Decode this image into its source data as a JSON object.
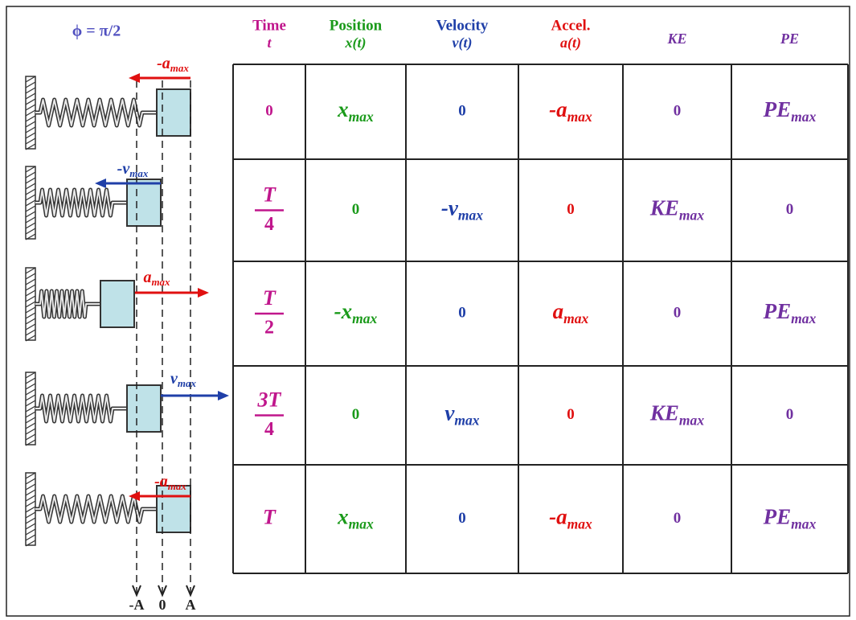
{
  "phase_label": "ϕ = π/2",
  "diagram": {
    "arrows": [
      {
        "base": "-a",
        "sub": "max"
      },
      {
        "base": "-v",
        "sub": "max"
      },
      {
        "base": "a",
        "sub": "max"
      },
      {
        "base": "v",
        "sub": "max"
      },
      {
        "base": "-a",
        "sub": "max"
      }
    ],
    "axis_labels": [
      "-A",
      "0",
      "A"
    ]
  },
  "table": {
    "header": [
      {
        "name": "Time",
        "symbol": "t"
      },
      {
        "name": "Position",
        "symbol": "x(t)"
      },
      {
        "name": "Velocity",
        "symbol": "v(t)"
      },
      {
        "name": "Accel.",
        "symbol": "a(t)"
      },
      {
        "symbol": "KE"
      },
      {
        "symbol": "PE"
      }
    ],
    "rows": [
      [
        {
          "text": "0"
        },
        {
          "base": "x",
          "sub": "max"
        },
        {
          "text": "0"
        },
        {
          "base": "-a",
          "sub": "max"
        },
        {
          "text": "0"
        },
        {
          "base": "PE",
          "sub": "max"
        }
      ],
      [
        {
          "num": "T",
          "den": "4"
        },
        {
          "text": "0"
        },
        {
          "base": "-v",
          "sub": "max"
        },
        {
          "text": "0"
        },
        {
          "base": "KE",
          "sub": "max"
        },
        {
          "text": "0"
        }
      ],
      [
        {
          "num": "T",
          "den": "2"
        },
        {
          "base": "-x",
          "sub": "max"
        },
        {
          "text": "0"
        },
        {
          "base": "a",
          "sub": "max"
        },
        {
          "text": "0"
        },
        {
          "base": "PE",
          "sub": "max"
        }
      ],
      [
        {
          "num": "3T",
          "den": "4"
        },
        {
          "text": "0"
        },
        {
          "base": "v",
          "sub": "max"
        },
        {
          "text": "0"
        },
        {
          "base": "KE",
          "sub": "max"
        },
        {
          "text": "0"
        }
      ],
      [
        {
          "text": "T"
        },
        {
          "base": "x",
          "sub": "max"
        },
        {
          "text": "0"
        },
        {
          "base": "-a",
          "sub": "max"
        },
        {
          "text": "0"
        },
        {
          "base": "PE",
          "sub": "max"
        }
      ]
    ]
  }
}
